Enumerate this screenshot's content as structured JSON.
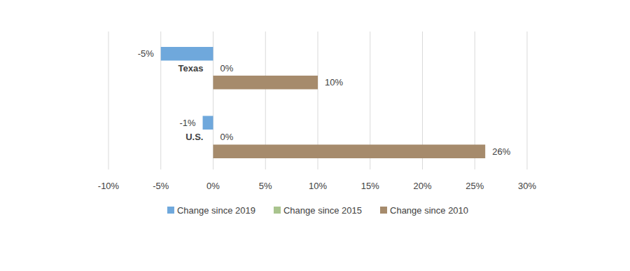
{
  "chart_data": {
    "type": "bar",
    "orientation": "horizontal",
    "grid": true,
    "legend": "bottom",
    "data_labels": true,
    "categories": [
      "Texas",
      "U.S."
    ],
    "series": [
      {
        "name": "Change since 2019",
        "color": "#6fa8dc",
        "values": [
          -5,
          -1
        ],
        "value_labels": [
          "-5%",
          "-1%"
        ]
      },
      {
        "name": "Change since 2015",
        "color": "#a9c48e",
        "values": [
          0,
          0
        ],
        "value_labels": [
          "0%",
          "0%"
        ]
      },
      {
        "name": "Change since 2010",
        "color": "#a68b6c",
        "values": [
          10,
          26
        ],
        "value_labels": [
          "10%",
          "26%"
        ]
      }
    ],
    "xlim": [
      -10,
      30
    ],
    "xticks": [
      {
        "value": -10,
        "label": "-10%"
      },
      {
        "value": -5,
        "label": "-5%"
      },
      {
        "value": 0,
        "label": "0%"
      },
      {
        "value": 5,
        "label": "5%"
      },
      {
        "value": 10,
        "label": "10%"
      },
      {
        "value": 15,
        "label": "15%"
      },
      {
        "value": 20,
        "label": "20%"
      },
      {
        "value": 25,
        "label": "25%"
      },
      {
        "value": 30,
        "label": "30%"
      }
    ]
  }
}
